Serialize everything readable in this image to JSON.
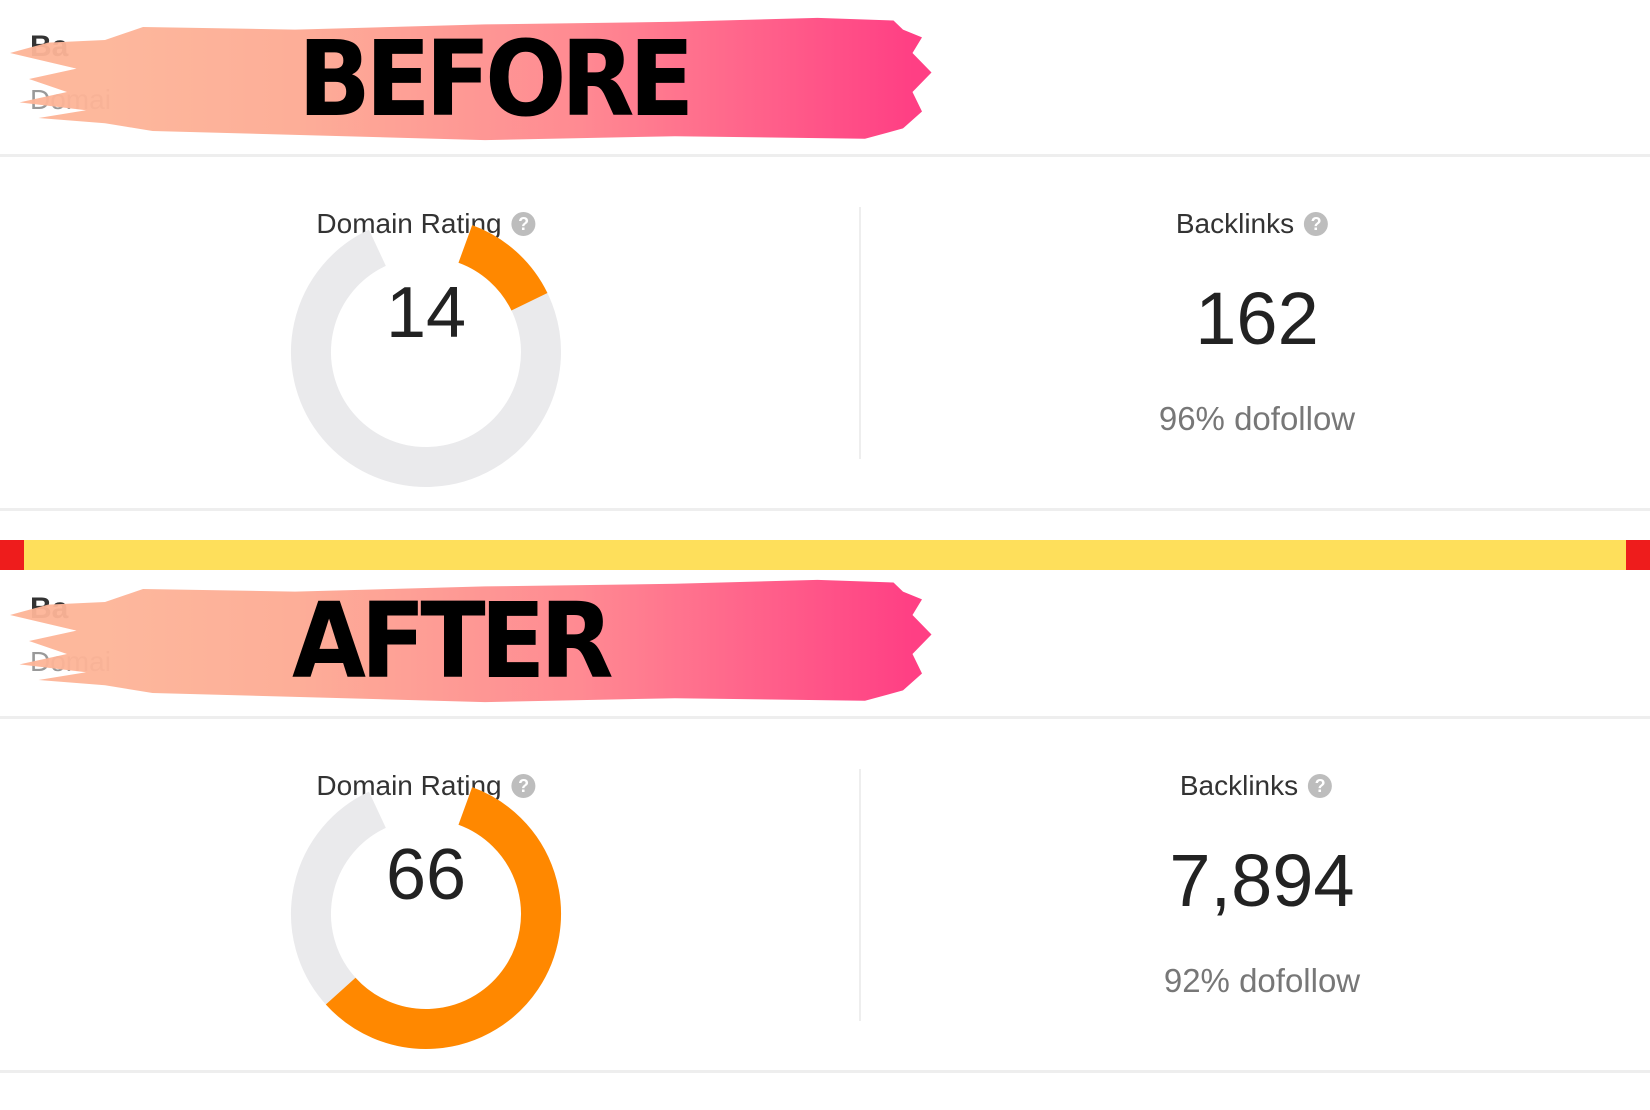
{
  "colors": {
    "gauge_fill": "#ff8800",
    "gauge_track": "#eaeaec",
    "band": "#fedf5b",
    "band_ends": "#ee1c1c",
    "brush_start": "#fdb497",
    "brush_end": "#ff3f84"
  },
  "sections": {
    "before": {
      "banner": "BEFORE",
      "hidden_title": "Ba",
      "hidden_subtitle": "Domai",
      "domain_rating": {
        "label": "Domain Rating",
        "value": 14,
        "value_text": "14",
        "help_icon": "question-circle-icon"
      },
      "backlinks": {
        "label": "Backlinks",
        "value": "162",
        "dofollow": "96% dofollow",
        "help_icon": "question-circle-icon"
      }
    },
    "after": {
      "banner": "AFTER",
      "hidden_title": "Ba",
      "hidden_subtitle": "Domai",
      "domain_rating": {
        "label": "Domain Rating",
        "value": 66,
        "value_text": "66",
        "help_icon": "question-circle-icon"
      },
      "backlinks": {
        "label": "Backlinks",
        "value": "7,894",
        "dofollow": "92% dofollow",
        "help_icon": "question-circle-icon"
      }
    }
  }
}
